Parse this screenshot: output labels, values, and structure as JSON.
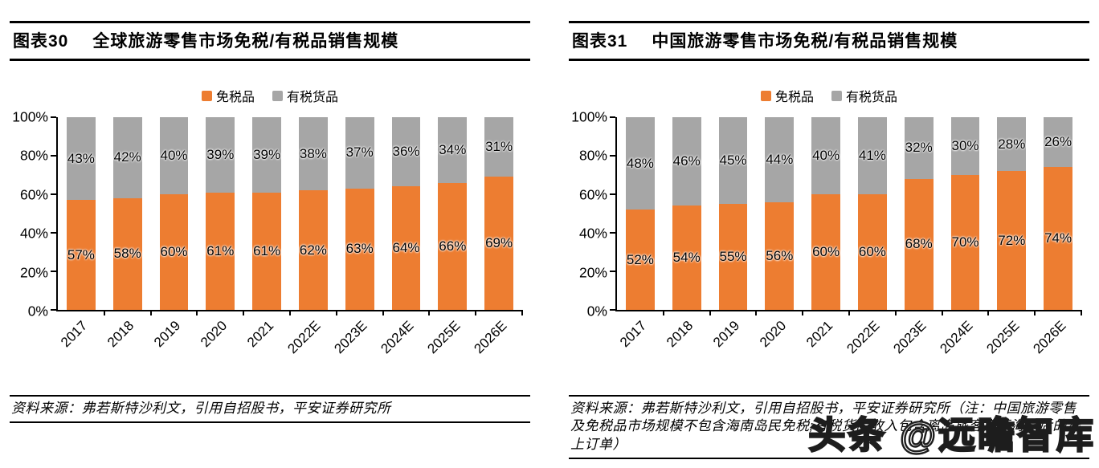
{
  "watermark": "头条 @远瞻智库",
  "colors": {
    "duty_free": "#ED7D31",
    "taxed": "#A6A6A6",
    "axis": "#000000"
  },
  "charts": [
    {
      "fig_no": "图表30",
      "title": "全球旅游零售市场免税/有税品销售规模",
      "source": "资料来源：弗若斯特沙利文，引用自招股书，平安证券研究所"
    },
    {
      "fig_no": "图表31",
      "title": "中国旅游零售市场免税/有税品销售规模",
      "source": "资料来源：弗若斯特沙利文，引用自招股书，平安证券研究所（注：中国旅游零售及免税品市场规模不包含海南岛民免税;有税货品收入包含离岛旅客离开海南后的线上订单）"
    }
  ],
  "chart_data": [
    {
      "type": "bar",
      "stacked": true,
      "title": "全球旅游零售市场免税/有税品销售规模",
      "categories": [
        "2017",
        "2018",
        "2019",
        "2020",
        "2021",
        "2022E",
        "2023E",
        "2024E",
        "2025E",
        "2026E"
      ],
      "series": [
        {
          "name": "免税品",
          "color": "#ED7D31",
          "values": [
            57,
            58,
            60,
            61,
            61,
            62,
            63,
            64,
            66,
            69
          ]
        },
        {
          "name": "有税货品",
          "color": "#A6A6A6",
          "values": [
            43,
            42,
            40,
            39,
            39,
            38,
            37,
            36,
            34,
            31
          ]
        }
      ],
      "value_suffix": "%",
      "ylim": [
        0,
        100
      ],
      "yticks": [
        0,
        20,
        40,
        60,
        80,
        100
      ],
      "ytick_suffix": "%",
      "legend_position": "top",
      "grid": false,
      "xlabel_rotation": -45
    },
    {
      "type": "bar",
      "stacked": true,
      "title": "中国旅游零售市场免税/有税品销售规模",
      "categories": [
        "2017",
        "2018",
        "2019",
        "2020",
        "2021",
        "2022E",
        "2023E",
        "2024E",
        "2025E",
        "2026E"
      ],
      "series": [
        {
          "name": "免税品",
          "color": "#ED7D31",
          "values": [
            52,
            54,
            55,
            56,
            60,
            60,
            68,
            70,
            72,
            74
          ]
        },
        {
          "name": "有税货品",
          "color": "#A6A6A6",
          "values": [
            48,
            46,
            45,
            44,
            40,
            41,
            32,
            30,
            28,
            26
          ]
        }
      ],
      "value_suffix": "%",
      "ylim": [
        0,
        100
      ],
      "yticks": [
        0,
        20,
        40,
        60,
        80,
        100
      ],
      "ytick_suffix": "%",
      "legend_position": "top",
      "grid": false,
      "xlabel_rotation": -45
    }
  ]
}
